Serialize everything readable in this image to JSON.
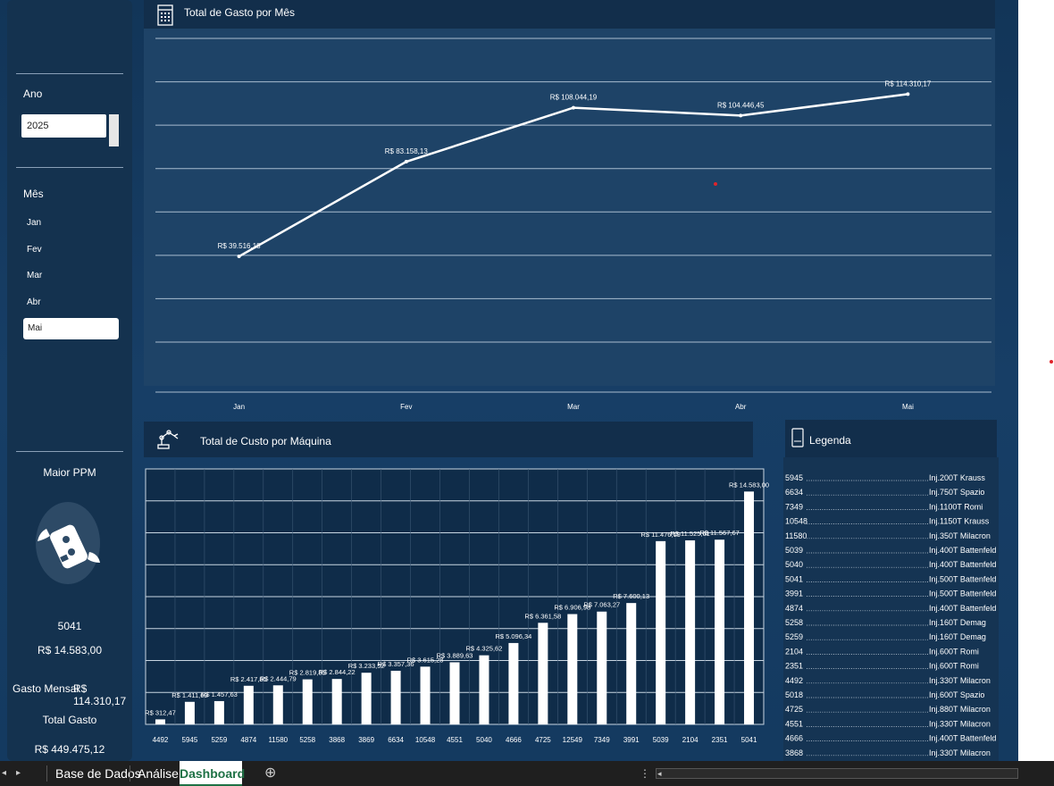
{
  "sidebar": {
    "year_label": "Ano",
    "year_value": "2025",
    "month_label": "Mês",
    "months": [
      "Jan",
      "Fev",
      "Mar",
      "Abr",
      "Mai"
    ],
    "selected_month": "Mai",
    "maior_ppm_label": "Maior PPM",
    "maior_ppm_machine": "5041",
    "maior_ppm_value": "R$ 14.583,00",
    "gasto_mensal_label": "Gasto Mensal",
    "gasto_mensal_value": "R$ 114.310,17",
    "total_gasto_label": "Total Gasto",
    "total_gasto_value": "R$ 449.475,12"
  },
  "line_panel": {
    "title": "Total de Gasto por Mês",
    "icon": "calendar-icon"
  },
  "bar_panel": {
    "title": "Total de Custo por  Máquina",
    "icon": "robot-arm-icon"
  },
  "legend_panel": {
    "title": "Legenda",
    "icon": "device-icon",
    "entries": [
      {
        "code": "5945",
        "name": "Inj.200T Krauss"
      },
      {
        "code": "6634",
        "name": "Inj.750T Spazio"
      },
      {
        "code": "7349",
        "name": "Inj.1100T Romi"
      },
      {
        "code": "10548",
        "name": "Inj.1150T Krauss"
      },
      {
        "code": "11580",
        "name": "Inj.350T Milacron"
      },
      {
        "code": "5039",
        "name": "Inj.400T Battenfeld"
      },
      {
        "code": "5040",
        "name": "Inj.400T Battenfeld"
      },
      {
        "code": "5041",
        "name": "Inj.500T Battenfeld"
      },
      {
        "code": "3991",
        "name": "Inj.500T Battenfeld"
      },
      {
        "code": "4874",
        "name": "Inj.400T Battenfeld"
      },
      {
        "code": "5258",
        "name": "Inj.160T Demag"
      },
      {
        "code": "5259",
        "name": "Inj.160T Demag"
      },
      {
        "code": "2104",
        "name": "Inj.600T Romi"
      },
      {
        "code": "2351",
        "name": "Inj.600T Romi"
      },
      {
        "code": "4492",
        "name": "Inj.330T Milacron"
      },
      {
        "code": "5018",
        "name": "Inj.600T Spazio"
      },
      {
        "code": "4725",
        "name": "Inj.880T Milacron"
      },
      {
        "code": "4551",
        "name": "Inj.330T Milacron"
      },
      {
        "code": "4666",
        "name": "Inj.400T Battenfeld"
      },
      {
        "code": "3868",
        "name": "Inj.330T Milacron"
      }
    ]
  },
  "tabs": {
    "items": [
      "Base de Dados",
      "Análise",
      "Dashboard"
    ],
    "active": "Dashboard",
    "colors": {
      "active_text": "#1e7145",
      "bar": "#1f1f1f"
    }
  },
  "chart_data": [
    {
      "type": "line",
      "title": "Total de Gasto por Mês",
      "categories": [
        "Jan",
        "Fev",
        "Mar",
        "Abr",
        "Mai"
      ],
      "values": [
        39516.18,
        83158.13,
        108044.19,
        104446.45,
        114310.17
      ],
      "labels": [
        "R$ 39.516,18",
        "R$ 83.158,13",
        "R$ 108.044,19",
        "R$ 104.446,45",
        "R$ 114.310,17"
      ],
      "ylim": [
        0,
        140000
      ],
      "grid": true
    },
    {
      "type": "bar",
      "title": "Total de Custo por  Máquina",
      "categories": [
        "4492",
        "5945",
        "5259",
        "4874",
        "11580",
        "5258",
        "3868",
        "3869",
        "6634",
        "10548",
        "4551",
        "5040",
        "4666",
        "4725",
        "12549",
        "7349",
        "3991",
        "5039",
        "2104",
        "2351",
        "5041"
      ],
      "values": [
        312.47,
        1411.69,
        1457.63,
        2417.85,
        2444.79,
        2819.85,
        2844.22,
        3233.52,
        3357.36,
        3615.28,
        3889.63,
        4325.62,
        5096.34,
        6361.58,
        6906.98,
        7063.27,
        7600.13,
        11476.19,
        11525.61,
        11567.67,
        14583.0
      ],
      "labels": [
        "R$ 312,47",
        "R$ 1.411,69",
        "R$ 1.457,63",
        "R$ 2.417,85",
        "R$ 2.444,79",
        "R$ 2.819,85",
        "R$ 2.844,22",
        "R$ 3.233,52",
        "R$ 3.357,36",
        "R$ 3.615,28",
        "R$ 3.889,63",
        "R$ 4.325,62",
        "R$ 5.096,34",
        "R$ 6.361,58",
        "R$ 6.906,98",
        "R$ 7.063,27",
        "R$ 7.600,13",
        "R$ 11.476,19",
        "R$ 11.525,61",
        "R$ 11.567,67",
        "R$ 14.583,00"
      ],
      "ylim": [
        0,
        16000
      ],
      "grid": true
    }
  ]
}
